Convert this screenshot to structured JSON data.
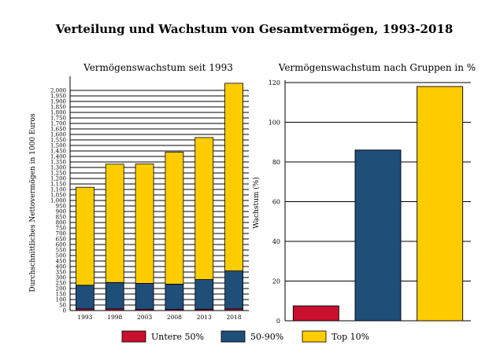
{
  "title": "Verteilung und Wachstum von Gesamtvermögen, 1993-2018",
  "colors": {
    "untere50": "#c8102e",
    "mid5090": "#1f4e79",
    "top10": "#ffcc00",
    "grid": "#000000"
  },
  "legend": {
    "placement": "bottom-center",
    "items": [
      {
        "key": "untere50",
        "label": "Untere 50%"
      },
      {
        "key": "mid5090",
        "label": "50-90%"
      },
      {
        "key": "top10",
        "label": "Top 10%"
      }
    ]
  },
  "chart_data": [
    {
      "type": "bar",
      "stacked": true,
      "title": "Vermögenswachstum seit 1993",
      "xlabel": "",
      "ylabel": "Durchschnittliches Nettovermögen in 1000 Euros",
      "categories": [
        "1993",
        "1998",
        "2003",
        "2008",
        "2013",
        "2018"
      ],
      "series": [
        {
          "name": "Untere 50%",
          "color_key": "untere50",
          "values": [
            15,
            15,
            12,
            10,
            12,
            15
          ]
        },
        {
          "name": "50-90%",
          "color_key": "mid5090",
          "values": [
            215,
            240,
            235,
            230,
            270,
            345
          ]
        },
        {
          "name": "Top 10%",
          "color_key": "top10",
          "values": [
            890,
            1075,
            1085,
            1200,
            1290,
            1705
          ]
        }
      ],
      "ylim": [
        0,
        2000
      ],
      "yticks": [
        0,
        50,
        100,
        150,
        200,
        250,
        300,
        350,
        400,
        450,
        500,
        550,
        600,
        650,
        700,
        750,
        800,
        850,
        900,
        950,
        1000,
        1050,
        1100,
        1150,
        1200,
        1250,
        1300,
        1350,
        1400,
        1450,
        1500,
        1550,
        1600,
        1650,
        1700,
        1750,
        1800,
        1850,
        1900,
        1950,
        2000
      ],
      "ytick_labels": [
        "0",
        "50",
        "100",
        "150",
        "200",
        "250",
        "300",
        "350",
        "400",
        "450",
        "500",
        "550",
        "600",
        "650",
        "700",
        "750",
        "800",
        "850",
        "900",
        "950",
        "1,000",
        "1,050",
        "1,100",
        "1,150",
        "1,200",
        "1,250",
        "1,300",
        "1,350",
        "1,400",
        "1,450",
        "1,500",
        "1,550",
        "1,600",
        "1,650",
        "1,700",
        "1,750",
        "1,800",
        "1,850",
        "1,900",
        "1,950",
        "2,000"
      ],
      "grid": "horizontal"
    },
    {
      "type": "bar",
      "title": "Vermögenswachstum nach Gruppen in %",
      "xlabel": "",
      "ylabel": "Wachstum (%)",
      "categories": [
        "Untere 50%",
        "50-90%",
        "Top 10%"
      ],
      "category_color_keys": [
        "untere50",
        "mid5090",
        "top10"
      ],
      "values": [
        7.5,
        86,
        118
      ],
      "ylim": [
        0,
        120
      ],
      "yticks": [
        0,
        20,
        40,
        60,
        80,
        100,
        120
      ],
      "ytick_labels": [
        "0",
        "20",
        "40",
        "60",
        "80",
        "100",
        "120"
      ],
      "grid": "horizontal"
    }
  ]
}
